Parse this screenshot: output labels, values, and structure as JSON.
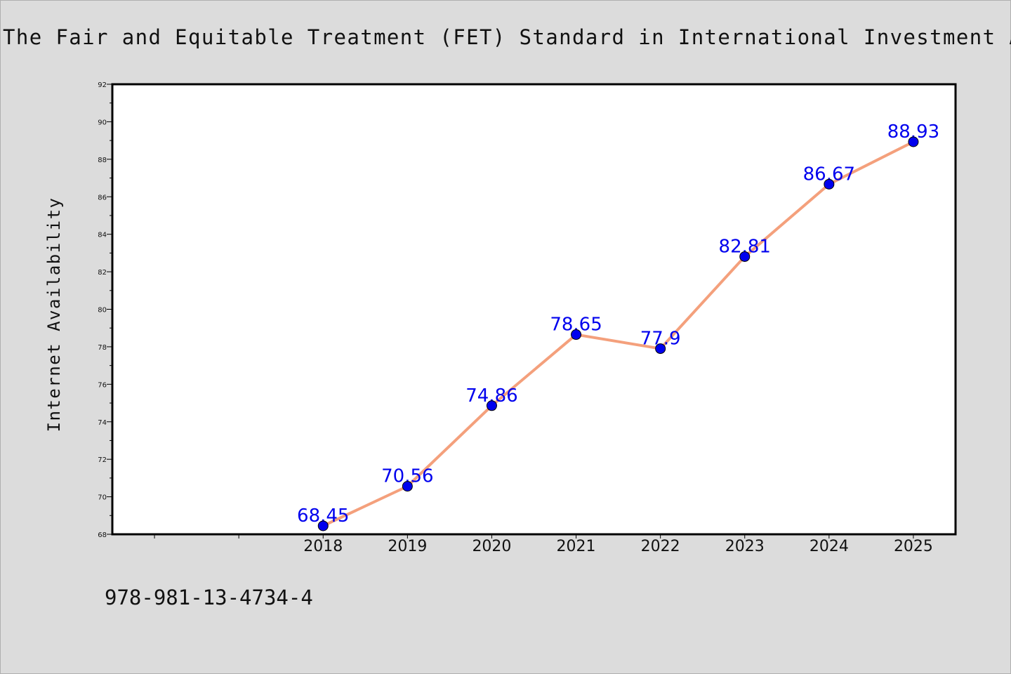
{
  "chart_data": {
    "type": "line",
    "title": "The Fair and Equitable Treatment (FET) Standard in International Investment Arbi",
    "xlabel": "",
    "ylabel": "Internet Availability",
    "categories": [
      "2018",
      "2019",
      "2020",
      "2021",
      "2022",
      "2023",
      "2024",
      "2025"
    ],
    "values": [
      68.45,
      70.56,
      74.86,
      78.65,
      77.9,
      82.81,
      86.67,
      88.93
    ],
    "data_labels": [
      "68.45",
      "70.56",
      "74.86",
      "78.65",
      "77.9",
      "82.81",
      "86.67",
      "88.93"
    ],
    "ylim": [
      68,
      92
    ],
    "y_major_ticks": [
      68,
      70,
      72,
      74,
      76,
      78,
      80,
      82,
      84,
      86,
      88,
      90,
      92
    ],
    "y_tick_labels": [
      "68",
      "70",
      "72",
      "74",
      "76",
      "78",
      "80",
      "82",
      "84",
      "86",
      "88",
      "90",
      "92"
    ],
    "grid": false,
    "legend": "none",
    "colors": {
      "line": "#f4a07c",
      "marker": "#0000ee",
      "data_label": "#0000ee",
      "plot_background": "#ffffff",
      "figure_background": "#dcdcdc"
    }
  },
  "footer": {
    "isbn": "978-981-13-4734-4"
  }
}
